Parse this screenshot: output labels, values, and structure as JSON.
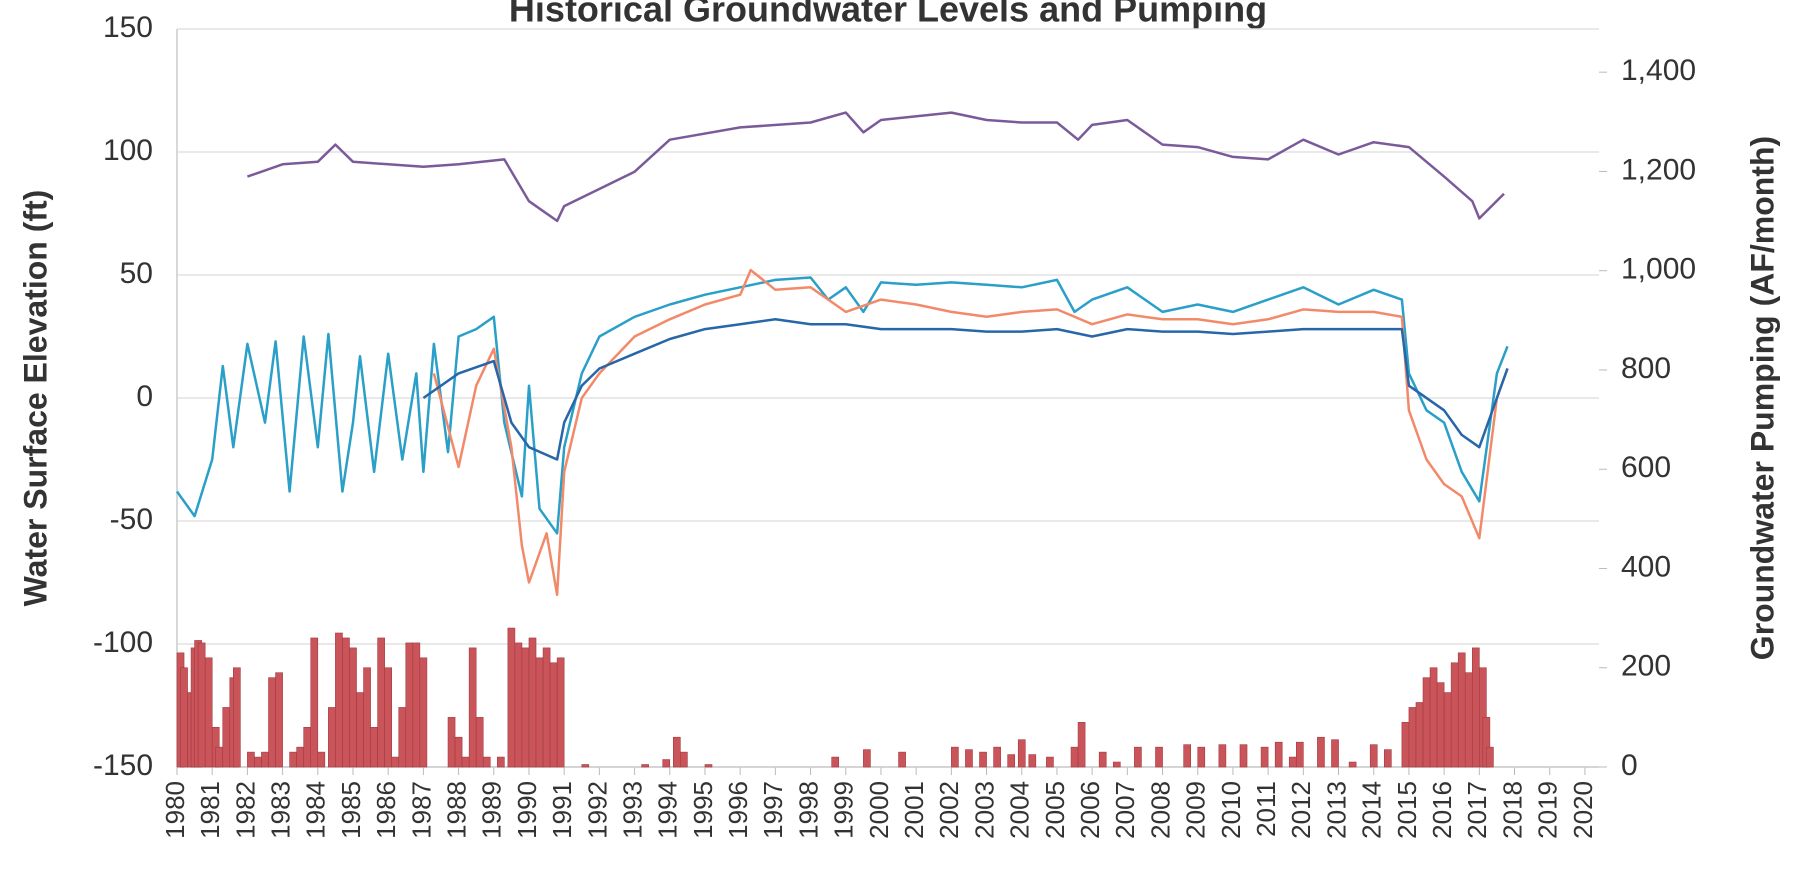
{
  "chart_data": {
    "type": "line",
    "title": "Historical Groundwater Levels and Pumping",
    "y_label": "Water Surface Elevation (ft)",
    "y2_label": "Groundwater Pumping (AF/month)",
    "xlim": [
      1980,
      2020.4
    ],
    "xticks": [
      1980,
      1981,
      1982,
      1983,
      1984,
      1985,
      1986,
      1987,
      1988,
      1989,
      1990,
      1991,
      1992,
      1993,
      1994,
      1995,
      1996,
      1997,
      1998,
      1999,
      2000,
      2001,
      2002,
      2003,
      2004,
      2005,
      2006,
      2007,
      2008,
      2009,
      2010,
      2011,
      2012,
      2013,
      2014,
      2015,
      2016,
      2017,
      2018,
      2019,
      2020
    ],
    "ylim": [
      -150,
      150
    ],
    "yticks": [
      -150,
      -100,
      -50,
      0,
      50,
      100,
      150
    ],
    "y2lim": [
      0,
      1487
    ],
    "y2ticks": [
      0,
      200,
      400,
      600,
      800,
      {
        "value": 1000,
        "label": "1,000"
      },
      {
        "value": 1200,
        "label": "1,200"
      },
      {
        "value": 1400,
        "label": "1,400"
      }
    ],
    "grid": true,
    "series": [
      {
        "type": "bar",
        "axis": "y2",
        "color": "#c9555a",
        "x": [
          1980.0,
          1980.1,
          1980.3,
          1980.4,
          1980.5,
          1980.6,
          1980.8,
          1981.0,
          1981.1,
          1981.3,
          1981.5,
          1981.6,
          1982.0,
          1982.2,
          1982.4,
          1982.6,
          1982.8,
          1983.2,
          1983.4,
          1983.6,
          1983.8,
          1984.0,
          1984.3,
          1984.5,
          1984.7,
          1984.9,
          1985.1,
          1985.3,
          1985.5,
          1985.7,
          1985.9,
          1986.1,
          1986.3,
          1986.5,
          1986.7,
          1986.9,
          1987.7,
          1987.9,
          1988.1,
          1988.3,
          1988.5,
          1988.7,
          1989.1,
          1989.4,
          1989.6,
          1989.8,
          1990.0,
          1990.2,
          1990.4,
          1990.6,
          1990.8,
          1991.5,
          1993.2,
          1993.8,
          1994.1,
          1994.3,
          1995.0,
          1998.6,
          1999.5,
          2000.5,
          2002.0,
          2002.4,
          2002.8,
          2003.2,
          2003.6,
          2003.9,
          2004.2,
          2004.7,
          2005.4,
          2005.6,
          2006.2,
          2006.6,
          2007.2,
          2007.8,
          2008.6,
          2009.0,
          2009.6,
          2010.2,
          2010.8,
          2011.2,
          2011.6,
          2011.8,
          2012.4,
          2012.8,
          2013.3,
          2013.9,
          2014.3,
          2014.8,
          2015.0,
          2015.2,
          2015.4,
          2015.6,
          2015.8,
          2016.0,
          2016.2,
          2016.4,
          2016.6,
          2016.8,
          2017.0,
          2017.1,
          2017.2
        ],
        "values": [
          230,
          200,
          150,
          240,
          255,
          250,
          220,
          80,
          40,
          120,
          180,
          200,
          30,
          20,
          30,
          180,
          190,
          30,
          40,
          80,
          260,
          30,
          120,
          270,
          260,
          240,
          150,
          200,
          80,
          260,
          200,
          20,
          120,
          250,
          250,
          220,
          100,
          60,
          20,
          240,
          100,
          20,
          20,
          280,
          250,
          240,
          260,
          220,
          240,
          210,
          220,
          5,
          5,
          15,
          60,
          30,
          5,
          20,
          35,
          30,
          40,
          35,
          30,
          40,
          25,
          55,
          25,
          20,
          40,
          90,
          30,
          10,
          40,
          40,
          45,
          40,
          45,
          45,
          40,
          50,
          20,
          50,
          60,
          55,
          10,
          45,
          35,
          90,
          120,
          130,
          180,
          200,
          170,
          150,
          210,
          230,
          190,
          240,
          200,
          100,
          40
        ]
      },
      {
        "type": "line",
        "color": "#7b5a9a",
        "x": [
          1982,
          1983,
          1984,
          1984.5,
          1985,
          1986,
          1987,
          1988,
          1989.3,
          1990,
          1990.8,
          1991,
          1993,
          1994,
          1996,
          1998,
          1999,
          1999.5,
          2000,
          2002,
          2003,
          2004,
          2005,
          2005.6,
          2006,
          2007,
          2008,
          2009,
          2010,
          2011,
          2012,
          2013,
          2014,
          2015,
          2016,
          2016.8,
          2017,
          2017.7
        ],
        "values": [
          90,
          95,
          96,
          103,
          96,
          95,
          94,
          95,
          97,
          80,
          72,
          78,
          92,
          105,
          110,
          112,
          116,
          108,
          113,
          116,
          113,
          112,
          112,
          105,
          111,
          113,
          103,
          102,
          98,
          97,
          105,
          99,
          104,
          102,
          90,
          80,
          73,
          83
        ]
      },
      {
        "type": "line",
        "color": "#2a9fc8",
        "x": [
          1980,
          1980.5,
          1981,
          1981.3,
          1981.6,
          1982,
          1982.5,
          1982.8,
          1983.2,
          1983.6,
          1984,
          1984.3,
          1984.7,
          1985,
          1985.2,
          1985.6,
          1986,
          1986.4,
          1986.8,
          1987,
          1987.3,
          1987.7,
          1988,
          1988.5,
          1989,
          1989.3,
          1989.8,
          1990,
          1990.3,
          1990.8,
          1991,
          1991.5,
          1992,
          1993,
          1994,
          1995,
          1996,
          1997,
          1998,
          1998.5,
          1999,
          1999.5,
          2000,
          2001,
          2002,
          2003,
          2004,
          2005,
          2005.5,
          2006,
          2007,
          2008,
          2009,
          2010,
          2011,
          2012,
          2013,
          2014,
          2014.8,
          2015,
          2015.5,
          2016,
          2016.5,
          2017,
          2017.5,
          2017.8
        ],
        "values": [
          -38,
          -48,
          -25,
          13,
          -20,
          22,
          -10,
          23,
          -38,
          25,
          -20,
          26,
          -38,
          -10,
          17,
          -30,
          18,
          -25,
          10,
          -30,
          22,
          -22,
          25,
          28,
          33,
          -10,
          -40,
          5,
          -45,
          -55,
          -20,
          10,
          25,
          33,
          38,
          42,
          45,
          48,
          49,
          40,
          45,
          35,
          47,
          46,
          47,
          46,
          45,
          48,
          35,
          40,
          45,
          35,
          38,
          35,
          40,
          45,
          38,
          44,
          40,
          10,
          -5,
          -10,
          -30,
          -42,
          10,
          21
        ]
      },
      {
        "type": "line",
        "color": "#f28a6a",
        "x": [
          1987.3,
          1988,
          1988.5,
          1989,
          1989.5,
          1989.8,
          1990,
          1990.5,
          1990.8,
          1991,
          1991.5,
          1992,
          1993,
          1994,
          1995,
          1996,
          1996.3,
          1997,
          1998,
          1999,
          2000,
          2001,
          2002,
          2003,
          2004,
          2005,
          2006,
          2007,
          2008,
          2009,
          2010,
          2011,
          2012,
          2013,
          2014,
          2014.8,
          2015,
          2015.5,
          2016,
          2016.5,
          2017,
          2017.5,
          2017.8
        ],
        "values": [
          10,
          -28,
          5,
          20,
          -20,
          -60,
          -75,
          -55,
          -80,
          -30,
          0,
          10,
          25,
          32,
          38,
          42,
          52,
          44,
          45,
          35,
          40,
          38,
          35,
          33,
          35,
          36,
          30,
          34,
          32,
          32,
          30,
          32,
          36,
          35,
          35,
          33,
          -5,
          -25,
          -35,
          -40,
          -57,
          0,
          12
        ]
      },
      {
        "type": "line",
        "color": "#2766a8",
        "x": [
          1987,
          1988,
          1989,
          1989.5,
          1990,
          1990.8,
          1991,
          1991.5,
          1992,
          1993,
          1994,
          1995,
          1996,
          1997,
          1998,
          1999,
          2000,
          2001,
          2002,
          2003,
          2004,
          2005,
          2006,
          2007,
          2008,
          2009,
          2010,
          2011,
          2012,
          2013,
          2014,
          2014.8,
          2015,
          2016,
          2016.5,
          2017,
          2017.5,
          2017.8
        ],
        "values": [
          0,
          10,
          15,
          -10,
          -20,
          -25,
          -10,
          5,
          12,
          18,
          24,
          28,
          30,
          32,
          30,
          30,
          28,
          28,
          28,
          27,
          27,
          28,
          25,
          28,
          27,
          27,
          26,
          27,
          28,
          28,
          28,
          28,
          5,
          -5,
          -15,
          -20,
          0,
          12
        ]
      }
    ]
  }
}
